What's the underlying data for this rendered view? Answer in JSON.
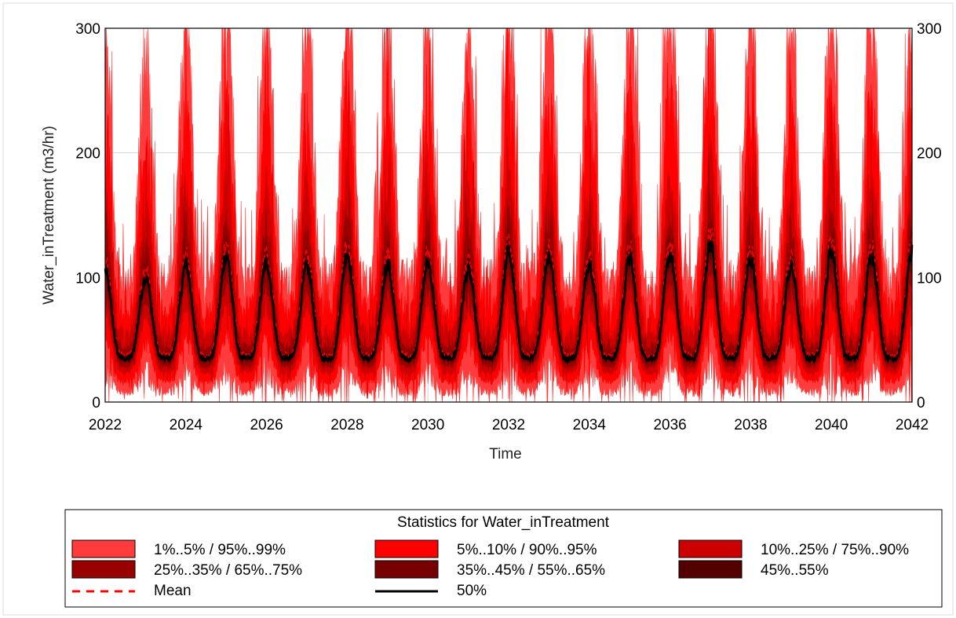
{
  "chart_data": {
    "type": "area",
    "xlabel": "Time",
    "ylabel": "Water_inTreatment (m3/hr)",
    "x_range": [
      2022,
      2042
    ],
    "ylim": [
      0,
      300
    ],
    "x_ticks": [
      "2022",
      "2024",
      "2026",
      "2028",
      "2030",
      "2032",
      "2034",
      "2036",
      "2038",
      "2040",
      "2042"
    ],
    "y_ticks": [
      "0",
      "100",
      "200",
      "300"
    ],
    "grid": true,
    "secondary_y_axis": true,
    "seasonal_period_years": 1,
    "typical_median_trough": 35,
    "median_peaks": [
      {
        "year": 2022.0,
        "value": 105
      },
      {
        "year": 2023.0,
        "value": 100
      },
      {
        "year": 2024.0,
        "value": 110
      },
      {
        "year": 2025.0,
        "value": 118
      },
      {
        "year": 2026.0,
        "value": 112
      },
      {
        "year": 2027.0,
        "value": 108
      },
      {
        "year": 2028.0,
        "value": 120
      },
      {
        "year": 2029.0,
        "value": 110
      },
      {
        "year": 2030.0,
        "value": 112
      },
      {
        "year": 2031.0,
        "value": 105
      },
      {
        "year": 2032.0,
        "value": 120
      },
      {
        "year": 2033.0,
        "value": 118
      },
      {
        "year": 2034.0,
        "value": 112
      },
      {
        "year": 2035.0,
        "value": 115
      },
      {
        "year": 2036.0,
        "value": 118
      },
      {
        "year": 2037.0,
        "value": 128
      },
      {
        "year": 2038.0,
        "value": 115
      },
      {
        "year": 2039.0,
        "value": 108
      },
      {
        "year": 2040.0,
        "value": 122
      },
      {
        "year": 2041.0,
        "value": 118
      },
      {
        "year": 2042.0,
        "value": 120
      }
    ],
    "legend": {
      "title": "Statistics for Water_inTreatment",
      "placement": "bottom",
      "items": [
        {
          "label": "1%..5% / 95%..99%",
          "kind": "band",
          "color": "#ff3b3b"
        },
        {
          "label": "5%..10% / 90%..95%",
          "kind": "band",
          "color": "#ff0000"
        },
        {
          "label": "10%..25% / 75%..90%",
          "kind": "band",
          "color": "#cc0000"
        },
        {
          "label": "25%..35% / 65%..75%",
          "kind": "band",
          "color": "#990000"
        },
        {
          "label": "35%..45% / 55%..65%",
          "kind": "band",
          "color": "#770000"
        },
        {
          "label": "45%..55%",
          "kind": "band",
          "color": "#550000"
        },
        {
          "label": "Mean",
          "kind": "dashed-line",
          "color": "#ff0000"
        },
        {
          "label": "50%",
          "kind": "line",
          "color": "#000000"
        }
      ]
    }
  }
}
